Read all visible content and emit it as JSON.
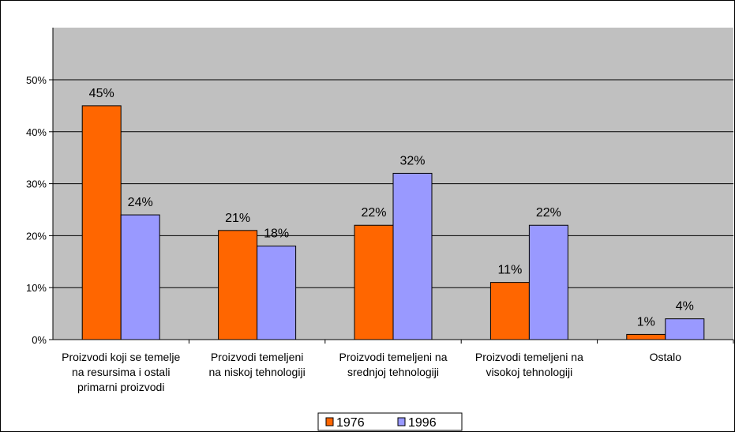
{
  "chart_data": {
    "type": "bar",
    "categories": [
      [
        "Proizvodi koji se temelje",
        "na resursima i ostali",
        "primarni proizvodi"
      ],
      [
        "Proizvodi temeljeni",
        "na niskoj tehnologiji"
      ],
      [
        "Proizvodi temeljeni na",
        "srednjoj tehnologiji"
      ],
      [
        "Proizvodi temeljeni na",
        "visokoj tehnologiji"
      ],
      [
        "Ostalo"
      ]
    ],
    "series": [
      {
        "name": "1976",
        "values": [
          45,
          21,
          22,
          11,
          1
        ],
        "labels": [
          "45%",
          "21%",
          "22%",
          "11%",
          "1%"
        ],
        "color": "#ff6600"
      },
      {
        "name": "1996",
        "values": [
          24,
          18,
          32,
          22,
          4
        ],
        "labels": [
          "24%",
          "18%",
          "32%",
          "22%",
          "4%"
        ],
        "color": "#9999ff"
      }
    ],
    "y_ticks": [
      "0%",
      "10%",
      "20%",
      "30%",
      "40%",
      "50%"
    ],
    "ylim": [
      0,
      50
    ],
    "grid": true,
    "legend_position": "bottom",
    "plot_background": "#c0c0c0"
  }
}
